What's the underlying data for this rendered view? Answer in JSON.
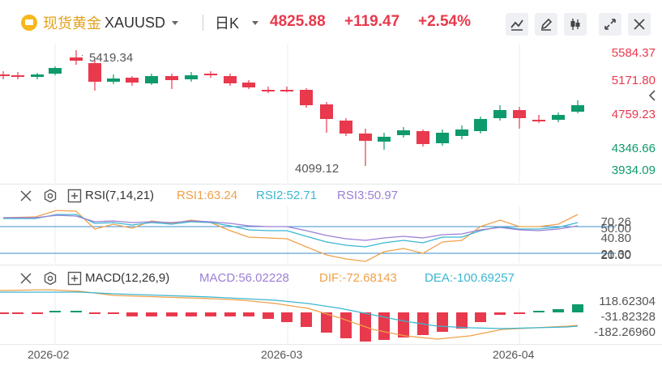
{
  "header": {
    "symbol_cn": "现货黄金",
    "symbol": "XAUUSD",
    "timeframe": "日K",
    "price": "4825.88",
    "change": "+119.47",
    "change_pct": "+2.54%",
    "price_color": "#e8394d"
  },
  "price_axis": {
    "labels": [
      "5584.37",
      "5171.80",
      "4759.23",
      "4346.66",
      "3934.09"
    ],
    "label_colors": [
      "#e8394d",
      "#e8394d",
      "#e8394d",
      "#0e9a6d",
      "#0e9a6d"
    ],
    "high_marker": "5419.34",
    "low_marker": "4099.12"
  },
  "rsi": {
    "title": "RSI(7,14,21)",
    "rsi1": "RSI1:63.24",
    "rsi2": "RSI2:52.71",
    "rsi3": "RSI3:50.97",
    "colors": {
      "rsi1": "#f0a14b",
      "rsi2": "#3bb6d0",
      "rsi3": "#9b7fd6"
    },
    "axis_labels": [
      "70.26",
      "50.00",
      "40.80",
      "21.30",
      "20.00"
    ]
  },
  "macd": {
    "title": "MACD(12,26,9)",
    "macd": "MACD:56.02228",
    "dif": "DIF:-72.68143",
    "dea": "DEA:-100.69257",
    "colors": {
      "macd": "#9b7fd6",
      "dif": "#f0a14b",
      "dea": "#3bb6d0"
    },
    "axis_labels": [
      "118.62304",
      "-31.82328",
      "-182.26960"
    ]
  },
  "x_axis": {
    "labels": [
      "2026-02",
      "2026-03",
      "2026-04"
    ]
  },
  "icons": [
    "gold-bar-icon",
    "dropdown-caret-icon",
    "draw-line-icon",
    "pencil-icon",
    "candle-style-icon",
    "fullscreen-icon",
    "close-icon",
    "collapse-right-icon",
    "remove-panel-icon",
    "settings-icon",
    "add-panel-icon"
  ],
  "colors": {
    "up": "#0e9a6d",
    "down": "#e8394d",
    "grid": "#e6e6e6"
  }
}
